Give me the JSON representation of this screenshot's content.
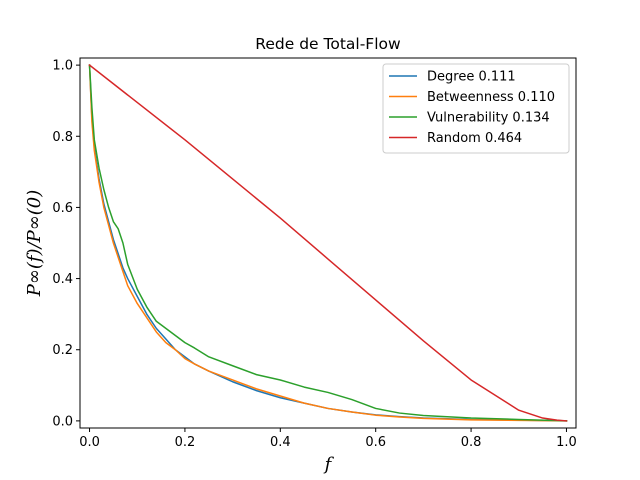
{
  "chart_data": {
    "type": "line",
    "title": "Rede de Total-Flow",
    "xlabel": "f",
    "ylabel": "P∞(f)/P∞(0)",
    "xlim": [
      -0.02,
      1.02
    ],
    "ylim": [
      -0.02,
      1.02
    ],
    "xticks": [
      0.0,
      0.2,
      0.4,
      0.6,
      0.8,
      1.0
    ],
    "yticks": [
      0.0,
      0.2,
      0.4,
      0.6,
      0.8,
      1.0
    ],
    "xtick_labels": [
      "0.0",
      "0.2",
      "0.4",
      "0.6",
      "0.8",
      "1.0"
    ],
    "ytick_labels": [
      "0.0",
      "0.2",
      "0.4",
      "0.6",
      "0.8",
      "1.0"
    ],
    "grid": false,
    "legend_position": "top-right",
    "series": [
      {
        "name": "Degree 0.111",
        "color": "#1f77b4",
        "x": [
          0,
          0.005,
          0.01,
          0.02,
          0.03,
          0.04,
          0.05,
          0.06,
          0.07,
          0.08,
          0.1,
          0.12,
          0.14,
          0.16,
          0.18,
          0.2,
          0.22,
          0.25,
          0.3,
          0.35,
          0.4,
          0.45,
          0.5,
          0.55,
          0.6,
          0.65,
          0.7,
          0.8,
          0.9,
          1.0
        ],
        "y": [
          1.0,
          0.85,
          0.77,
          0.68,
          0.61,
          0.56,
          0.51,
          0.47,
          0.43,
          0.4,
          0.35,
          0.3,
          0.26,
          0.23,
          0.2,
          0.18,
          0.16,
          0.14,
          0.11,
          0.085,
          0.065,
          0.05,
          0.035,
          0.025,
          0.017,
          0.012,
          0.008,
          0.004,
          0.002,
          0.0
        ]
      },
      {
        "name": "Betweenness 0.110",
        "color": "#ff7f0e",
        "x": [
          0,
          0.005,
          0.01,
          0.02,
          0.03,
          0.04,
          0.05,
          0.06,
          0.07,
          0.08,
          0.1,
          0.12,
          0.14,
          0.16,
          0.18,
          0.2,
          0.22,
          0.25,
          0.3,
          0.35,
          0.4,
          0.45,
          0.5,
          0.55,
          0.6,
          0.65,
          0.7,
          0.8,
          0.9,
          1.0
        ],
        "y": [
          1.0,
          0.84,
          0.76,
          0.67,
          0.6,
          0.55,
          0.5,
          0.46,
          0.42,
          0.38,
          0.33,
          0.29,
          0.25,
          0.22,
          0.2,
          0.175,
          0.16,
          0.14,
          0.115,
          0.09,
          0.07,
          0.05,
          0.035,
          0.025,
          0.016,
          0.011,
          0.007,
          0.003,
          0.0015,
          0.0
        ]
      },
      {
        "name": "Vulnerability 0.134",
        "color": "#2ca02c",
        "x": [
          0,
          0.005,
          0.01,
          0.02,
          0.03,
          0.04,
          0.05,
          0.06,
          0.07,
          0.08,
          0.1,
          0.12,
          0.14,
          0.16,
          0.18,
          0.2,
          0.22,
          0.25,
          0.3,
          0.35,
          0.4,
          0.45,
          0.5,
          0.55,
          0.6,
          0.65,
          0.7,
          0.8,
          0.9,
          1.0
        ],
        "y": [
          1.0,
          0.88,
          0.79,
          0.71,
          0.65,
          0.6,
          0.56,
          0.54,
          0.5,
          0.44,
          0.37,
          0.32,
          0.28,
          0.26,
          0.24,
          0.22,
          0.205,
          0.18,
          0.155,
          0.13,
          0.115,
          0.095,
          0.08,
          0.06,
          0.035,
          0.022,
          0.015,
          0.008,
          0.004,
          0.0
        ]
      },
      {
        "name": "Random 0.464",
        "color": "#d62728",
        "x": [
          0,
          0.1,
          0.2,
          0.3,
          0.4,
          0.5,
          0.6,
          0.7,
          0.8,
          0.9,
          0.95,
          0.98,
          1.0
        ],
        "y": [
          1.0,
          0.895,
          0.79,
          0.68,
          0.57,
          0.455,
          0.34,
          0.225,
          0.115,
          0.03,
          0.008,
          0.002,
          0.0
        ]
      }
    ]
  }
}
